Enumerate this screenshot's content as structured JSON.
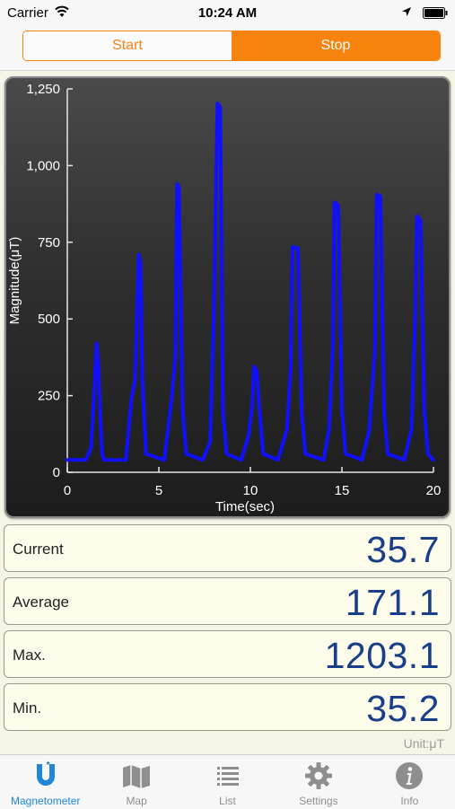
{
  "status_bar": {
    "carrier": "Carrier",
    "time": "10:24 AM"
  },
  "segment": {
    "start_label": "Start",
    "stop_label": "Stop",
    "selected": "Stop"
  },
  "chart_data": {
    "type": "line",
    "xlabel": "Time(sec)",
    "ylabel": "Magnitude(μT)",
    "xlim": [
      0,
      20
    ],
    "ylim": [
      0,
      1250
    ],
    "x_ticks": [
      "0",
      "5",
      "10",
      "15",
      "20"
    ],
    "y_ticks": [
      "0",
      "250",
      "500",
      "750",
      "1,000",
      "1,250"
    ],
    "grid": false,
    "series": [
      {
        "color": "#1010ff",
        "x": [
          0,
          1.0,
          1.3,
          1.5,
          1.6,
          1.7,
          1.8,
          1.9,
          2.0,
          2.3,
          3.2,
          3.5,
          3.7,
          3.9,
          4.0,
          4.1,
          4.3,
          5.3,
          5.7,
          5.9,
          6.0,
          6.1,
          6.3,
          6.5,
          7.4,
          7.8,
          8.0,
          8.2,
          8.35,
          8.5,
          8.7,
          9.5,
          9.9,
          10.1,
          10.2,
          10.35,
          10.5,
          10.7,
          11.5,
          12.0,
          12.2,
          12.3,
          12.6,
          12.8,
          13.0,
          14.0,
          14.3,
          14.5,
          14.6,
          14.8,
          15.0,
          15.2,
          16.1,
          16.5,
          16.8,
          16.9,
          17.1,
          17.3,
          17.5,
          18.4,
          18.8,
          19.0,
          19.1,
          19.3,
          19.5,
          19.7,
          20
        ],
        "y": [
          40,
          40,
          80,
          300,
          420,
          350,
          180,
          60,
          40,
          40,
          40,
          240,
          300,
          710,
          680,
          300,
          60,
          40,
          240,
          380,
          940,
          930,
          200,
          60,
          40,
          100,
          500,
          1203,
          1190,
          200,
          60,
          40,
          120,
          220,
          345,
          330,
          200,
          60,
          40,
          140,
          340,
          735,
          730,
          200,
          60,
          40,
          140,
          400,
          880,
          870,
          200,
          60,
          40,
          140,
          400,
          905,
          900,
          200,
          60,
          40,
          140,
          500,
          835,
          820,
          200,
          60,
          40
        ]
      }
    ]
  },
  "readouts": [
    {
      "label": "Current",
      "value": "35.7"
    },
    {
      "label": "Average",
      "value": "171.1"
    },
    {
      "label": "Max.",
      "value": "1203.1"
    },
    {
      "label": "Min.",
      "value": "35.2"
    }
  ],
  "unit": "Unit:μT",
  "tabs": [
    {
      "label": "Magnetometer",
      "icon": "magnet-icon",
      "active": true
    },
    {
      "label": "Map",
      "icon": "map-icon",
      "active": false
    },
    {
      "label": "List",
      "icon": "list-icon",
      "active": false
    },
    {
      "label": "Settings",
      "icon": "gear-icon",
      "active": false
    },
    {
      "label": "Info",
      "icon": "info-icon",
      "active": false
    }
  ],
  "colors": {
    "accent": "#f7830f",
    "value_text": "#1a3f8a",
    "line": "#1010ff",
    "tab_active": "#1f86d8"
  }
}
